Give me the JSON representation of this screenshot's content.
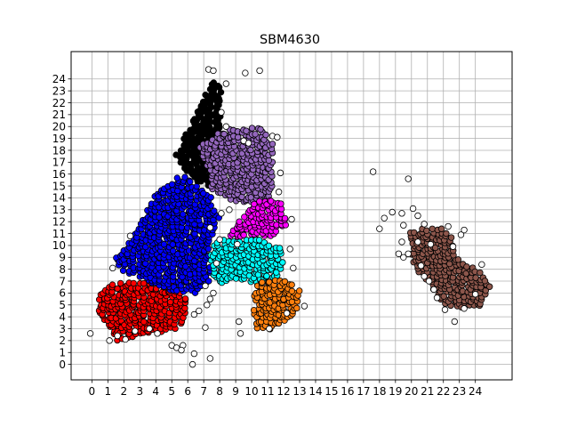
{
  "chart_data": {
    "type": "scatter",
    "title": "SBM4630",
    "xlabel": "",
    "ylabel": "",
    "xlim": [
      -1.3,
      26.3
    ],
    "ylim": [
      -1.3,
      26.3
    ],
    "x_ticks": [
      0,
      1,
      2,
      3,
      4,
      5,
      6,
      7,
      8,
      9,
      10,
      11,
      12,
      13,
      14,
      15,
      16,
      17,
      18,
      19,
      20,
      21,
      22,
      23,
      24
    ],
    "y_ticks": [
      0,
      1,
      2,
      3,
      4,
      5,
      6,
      7,
      8,
      9,
      10,
      11,
      12,
      13,
      14,
      15,
      16,
      17,
      18,
      19,
      20,
      21,
      22,
      23,
      24
    ],
    "grid": true,
    "legend": "none",
    "series": [
      {
        "color": "#ff0000",
        "region": [
          [
            0.2,
            4.7
          ],
          [
            1,
            3.2
          ],
          [
            1.5,
            2
          ],
          [
            3,
            2.3
          ],
          [
            5.3,
            3
          ],
          [
            6,
            4
          ],
          [
            6,
            5.5
          ],
          [
            5,
            6.8
          ],
          [
            3,
            7
          ],
          [
            1.3,
            6.8
          ],
          [
            0.5,
            5.8
          ]
        ]
      },
      {
        "color": "#0000ff",
        "region": [
          [
            1.5,
            9
          ],
          [
            2.5,
            10.5
          ],
          [
            4,
            14.3
          ],
          [
            5.5,
            16
          ],
          [
            6.5,
            15.2
          ],
          [
            7.5,
            14
          ],
          [
            8,
            12.3
          ],
          [
            7.6,
            10.8
          ],
          [
            7.3,
            9.5
          ],
          [
            7.5,
            7
          ],
          [
            6.5,
            6
          ],
          [
            5,
            6.2
          ],
          [
            2.5,
            7.5
          ],
          [
            1.7,
            8
          ]
        ]
      },
      {
        "color": "#000000",
        "region": [
          [
            5.2,
            17.5
          ],
          [
            6.3,
            20.5
          ],
          [
            7,
            22.5
          ],
          [
            7.7,
            24
          ],
          [
            8.2,
            23
          ],
          [
            8,
            20
          ],
          [
            7.7,
            17
          ],
          [
            7.5,
            14.8
          ],
          [
            6.3,
            15.6
          ]
        ]
      },
      {
        "color": "#9467bd",
        "region": [
          [
            6.7,
            18.3
          ],
          [
            8.2,
            19.7
          ],
          [
            10.5,
            20
          ],
          [
            11.4,
            18.5
          ],
          [
            11.3,
            15
          ],
          [
            11,
            13.3
          ],
          [
            10,
            13.5
          ],
          [
            8.7,
            13.8
          ],
          [
            7.5,
            14.5
          ],
          [
            7.2,
            16.5
          ]
        ]
      },
      {
        "color": "#ff00ff",
        "region": [
          [
            8.5,
            10.7
          ],
          [
            9.5,
            12.5
          ],
          [
            10.5,
            14
          ],
          [
            11.8,
            13.7
          ],
          [
            12.2,
            11.8
          ],
          [
            11.5,
            10.8
          ],
          [
            10,
            10.8
          ]
        ]
      },
      {
        "color": "#00ffff",
        "region": [
          [
            7.6,
            10.2
          ],
          [
            8.5,
            10.6
          ],
          [
            10.5,
            10.5
          ],
          [
            11.8,
            9.8
          ],
          [
            12,
            8.8
          ],
          [
            11.7,
            7.4
          ],
          [
            10.5,
            6.9
          ],
          [
            9,
            7
          ],
          [
            8,
            6.7
          ],
          [
            7.6,
            7.5
          ],
          [
            7.4,
            9
          ]
        ]
      },
      {
        "color": "#ff7f0e",
        "region": [
          [
            10.2,
            7
          ],
          [
            12,
            7.2
          ],
          [
            13,
            6.3
          ],
          [
            13,
            4.8
          ],
          [
            12.2,
            3.7
          ],
          [
            11,
            2.8
          ],
          [
            10.2,
            3.1
          ],
          [
            10.1,
            5
          ]
        ]
      },
      {
        "color": "#8c564b",
        "region": [
          [
            19.9,
            11.2
          ],
          [
            21.5,
            11.6
          ],
          [
            22.4,
            11.3
          ],
          [
            22.8,
            9
          ],
          [
            24.3,
            8
          ],
          [
            25,
            6.5
          ],
          [
            24.5,
            5
          ],
          [
            23,
            4.6
          ],
          [
            21.8,
            5.3
          ],
          [
            21,
            6.8
          ],
          [
            20.2,
            8
          ],
          [
            19.9,
            9.5
          ]
        ]
      },
      {
        "color": "#ffffff",
        "points": [
          [
            -0.1,
            2.6
          ],
          [
            1.3,
            8.1
          ],
          [
            1.1,
            2.0
          ],
          [
            1.6,
            2.4
          ],
          [
            2.1,
            2.1
          ],
          [
            2.7,
            2.8
          ],
          [
            2.4,
            10.8
          ],
          [
            3.6,
            3.0
          ],
          [
            4.1,
            2.6
          ],
          [
            5.0,
            1.6
          ],
          [
            5.3,
            1.4
          ],
          [
            5.7,
            1.6
          ],
          [
            5.6,
            1.2
          ],
          [
            6.4,
            0.9
          ],
          [
            6.3,
            0.0
          ],
          [
            6.7,
            4.5
          ],
          [
            7.1,
            3.1
          ],
          [
            7.4,
            0.5
          ],
          [
            7.2,
            5.0
          ],
          [
            7.4,
            5.5
          ],
          [
            7.6,
            6.0
          ],
          [
            7.1,
            6.6
          ],
          [
            7.8,
            8.5
          ],
          [
            7.4,
            11.5
          ],
          [
            8.1,
            12.7
          ],
          [
            8.0,
            10.5
          ],
          [
            8.6,
            13.0
          ],
          [
            9.1,
            10.1
          ],
          [
            9.2,
            3.6
          ],
          [
            9.3,
            2.6
          ],
          [
            9.6,
            24.5
          ],
          [
            10.5,
            24.7
          ],
          [
            7.3,
            24.8
          ],
          [
            7.6,
            24.7
          ],
          [
            8.4,
            23.6
          ],
          [
            8.1,
            21.2
          ],
          [
            8.4,
            20.0
          ],
          [
            9.5,
            18.8
          ],
          [
            9.8,
            18.6
          ],
          [
            11.3,
            19.2
          ],
          [
            11.6,
            19.1
          ],
          [
            11.8,
            16.1
          ],
          [
            11.7,
            14.5
          ],
          [
            12.5,
            12.2
          ],
          [
            12.4,
            9.7
          ],
          [
            12.6,
            8.1
          ],
          [
            13.3,
            4.9
          ],
          [
            12.2,
            4.3
          ],
          [
            11.1,
            3.0
          ],
          [
            6.4,
            4.2
          ],
          [
            17.6,
            16.2
          ],
          [
            18.8,
            12.8
          ],
          [
            18.3,
            12.3
          ],
          [
            18.0,
            11.4
          ],
          [
            19.4,
            12.7
          ],
          [
            19.5,
            11.7
          ],
          [
            19.4,
            10.3
          ],
          [
            19.2,
            9.3
          ],
          [
            19.5,
            9.0
          ],
          [
            19.8,
            9.3
          ],
          [
            19.8,
            15.6
          ],
          [
            20.1,
            13.1
          ],
          [
            20.4,
            12.5
          ],
          [
            20.8,
            11.8
          ],
          [
            20.4,
            10.3
          ],
          [
            20.6,
            8.3
          ],
          [
            20.8,
            7.4
          ],
          [
            21.1,
            7.0
          ],
          [
            21.4,
            6.3
          ],
          [
            21.6,
            5.6
          ],
          [
            22.1,
            4.6
          ],
          [
            22.7,
            3.6
          ],
          [
            23.3,
            4.7
          ],
          [
            24.4,
            8.4
          ],
          [
            24.0,
            5.9
          ],
          [
            22.3,
            11.6
          ],
          [
            23.1,
            10.9
          ],
          [
            23.3,
            11.3
          ],
          [
            21.2,
            10.1
          ],
          [
            22.6,
            9.9
          ]
        ]
      }
    ]
  }
}
